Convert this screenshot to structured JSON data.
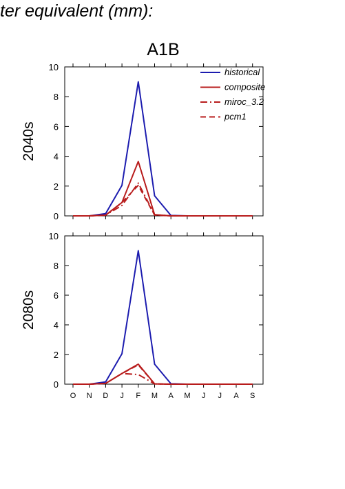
{
  "header": {
    "title": "ter equivalent (mm):"
  },
  "chart_data": {
    "type": "line",
    "title": "A1B",
    "categories": [
      "O",
      "N",
      "D",
      "J",
      "F",
      "M",
      "A",
      "M",
      "J",
      "J",
      "A",
      "S"
    ],
    "ylim": [
      0,
      10
    ],
    "yticks": [
      "0",
      "2",
      "4",
      "6",
      "8",
      "10"
    ],
    "legend": {
      "placement": "top-right",
      "entries": [
        {
          "name": "historical",
          "color": "#1c1caf",
          "style": "solid"
        },
        {
          "name": "composite",
          "color": "#b81c1c",
          "style": "solid"
        },
        {
          "name": "miroc_3.2",
          "color": "#b81c1c",
          "style": "dashdot"
        },
        {
          "name": "pcm1",
          "color": "#b81c1c",
          "style": "dashed"
        }
      ]
    },
    "panels": [
      {
        "ylabel": "2040s",
        "series": [
          {
            "name": "historical",
            "values": [
              0,
              0,
              0.15,
              2.05,
              9.0,
              1.35,
              0.03,
              0,
              0,
              0,
              0,
              0
            ]
          },
          {
            "name": "composite",
            "values": [
              0,
              0,
              0.05,
              0.9,
              3.65,
              0.08,
              0,
              0,
              0,
              0,
              0,
              0
            ]
          },
          {
            "name": "miroc_3.2",
            "values": [
              0,
              0,
              0.05,
              0.7,
              2.2,
              0.08,
              0,
              0,
              0,
              0,
              0,
              0
            ]
          },
          {
            "name": "pcm1",
            "values": [
              0,
              0,
              0.05,
              0.9,
              2.05,
              0.05,
              0,
              0,
              0,
              0,
              0,
              0
            ]
          }
        ]
      },
      {
        "ylabel": "2080s",
        "series": [
          {
            "name": "historical",
            "values": [
              0,
              0,
              0.15,
              2.05,
              9.0,
              1.35,
              0.03,
              0,
              0,
              0,
              0,
              0
            ]
          },
          {
            "name": "composite",
            "values": [
              0,
              0,
              0.05,
              0.72,
              1.35,
              0.02,
              0,
              0,
              0,
              0,
              0,
              0
            ]
          },
          {
            "name": "miroc_3.2",
            "values": [
              0,
              0,
              0.05,
              0.72,
              0.65,
              0.02,
              0,
              0,
              0,
              0,
              0,
              0
            ]
          },
          {
            "name": "pcm1",
            "values": [
              0,
              0,
              0.05,
              0.72,
              1.3,
              0.02,
              0,
              0,
              0,
              0,
              0,
              0
            ]
          }
        ]
      }
    ]
  }
}
